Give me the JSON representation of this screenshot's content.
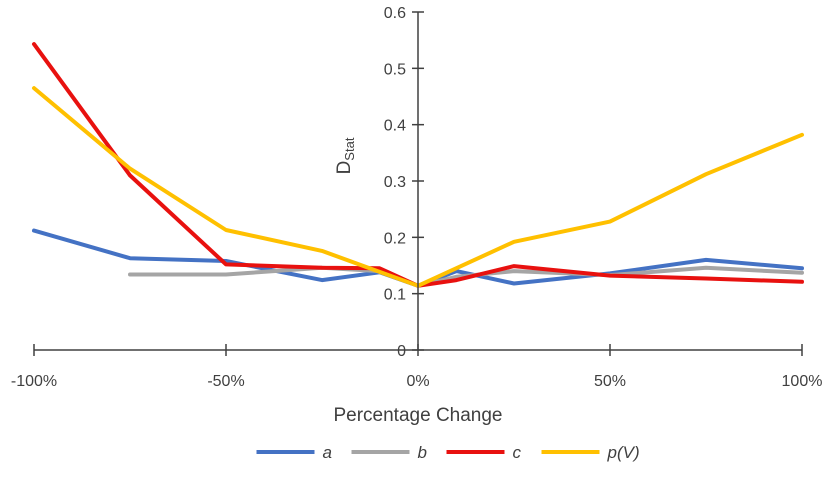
{
  "chart_data": {
    "type": "line",
    "title": "",
    "xlabel": "Percentage Change",
    "ylabel_main": "D",
    "ylabel_sub": "Stat",
    "x": [
      -100,
      -75,
      -50,
      -25,
      -10,
      0,
      10,
      25,
      50,
      75,
      100
    ],
    "x_tick_values": [
      -100,
      -50,
      0,
      50,
      100
    ],
    "x_tick_labels": [
      "-100%",
      "-50%",
      "0%",
      "50%",
      "100%"
    ],
    "xlim": [
      -100,
      100
    ],
    "y_tick_values": [
      0,
      0.1,
      0.2,
      0.3,
      0.4,
      0.5,
      0.6
    ],
    "y_tick_labels": [
      "0",
      "0.1",
      "0.2",
      "0.3",
      "0.4",
      "0.5",
      "0.6"
    ],
    "ylim": [
      0,
      0.6
    ],
    "grid": false,
    "legend_position": "bottom",
    "series": [
      {
        "name": "a",
        "color": "#4472C4",
        "x": [
          -100,
          -75,
          -50,
          -25,
          -10,
          0,
          10,
          25,
          50,
          75,
          100
        ],
        "values": [
          0.212,
          0.163,
          0.158,
          0.124,
          0.138,
          0.114,
          0.14,
          0.118,
          0.136,
          0.16,
          0.145
        ]
      },
      {
        "name": "b",
        "color": "#A5A5A5",
        "x": [
          -75,
          -50,
          -25,
          -10,
          0,
          10,
          25,
          50,
          75,
          100
        ],
        "values": [
          0.134,
          0.134,
          0.146,
          0.14,
          0.114,
          0.13,
          0.14,
          0.133,
          0.146,
          0.137
        ]
      },
      {
        "name": "c",
        "color": "#E8110F",
        "x": [
          -100,
          -75,
          -50,
          -25,
          -10,
          0,
          10,
          25,
          50,
          75,
          100
        ],
        "values": [
          0.543,
          0.31,
          0.152,
          0.146,
          0.145,
          0.114,
          0.124,
          0.149,
          0.132,
          0.127,
          0.121
        ]
      },
      {
        "name": "p(V)",
        "color": "#FFC000",
        "x": [
          -100,
          -75,
          -50,
          -25,
          0,
          25,
          50,
          75,
          100
        ],
        "values": [
          0.465,
          0.322,
          0.213,
          0.176,
          0.114,
          0.192,
          0.228,
          0.312,
          0.382
        ]
      }
    ]
  }
}
